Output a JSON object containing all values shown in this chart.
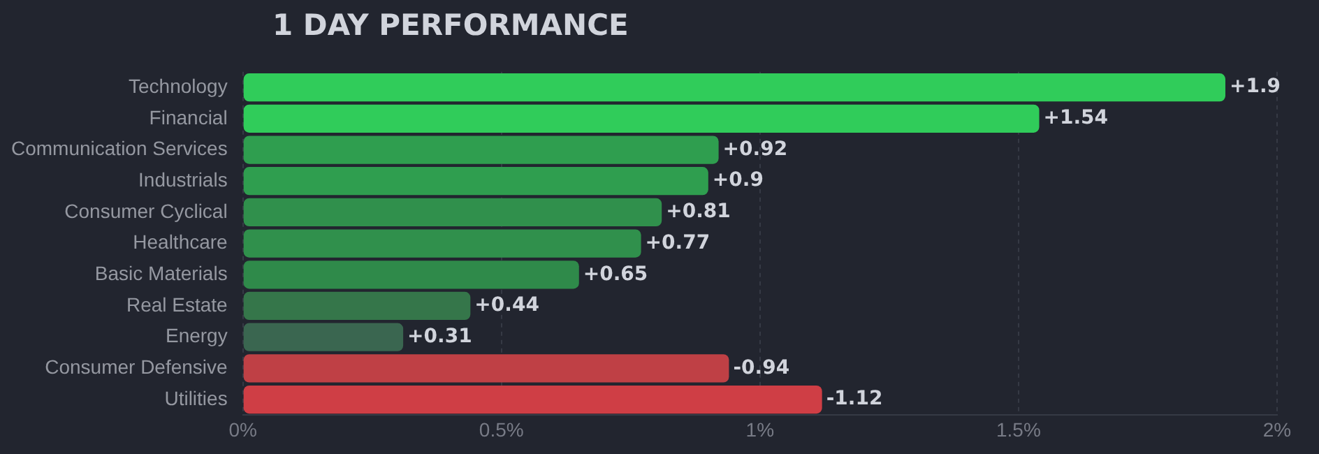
{
  "chart_data": {
    "type": "bar",
    "title": "1 DAY PERFORMANCE",
    "orientation": "horizontal",
    "categories": [
      "Technology",
      "Financial",
      "Communication Services",
      "Industrials",
      "Consumer Cyclical",
      "Healthcare",
      "Basic Materials",
      "Real Estate",
      "Energy",
      "Consumer Defensive",
      "Utilities"
    ],
    "values": [
      1.9,
      1.54,
      0.92,
      0.9,
      0.81,
      0.77,
      0.65,
      0.44,
      0.31,
      -0.94,
      -1.12
    ],
    "base": [
      0,
      0,
      0,
      0,
      0,
      0,
      0,
      0,
      0,
      0.94,
      1.12
    ],
    "value_labels": [
      "+1.9",
      "+1.54",
      "+0.92",
      "+0.9",
      "+0.81",
      "+0.77",
      "+0.65",
      "+0.44",
      "+0.31",
      "-0.94",
      "-1.12"
    ],
    "colors": [
      "#30cc5a",
      "#30cc5a",
      "#2f9e4f",
      "#2f9e4f",
      "#30904c",
      "#30904c",
      "#2f8a4a",
      "#35764a",
      "#3a6650",
      "#bf4045",
      "#cf3e45"
    ],
    "xlim": [
      0,
      2
    ],
    "xticks": [
      {
        "value": 0,
        "label": "0%"
      },
      {
        "value": 0.5,
        "label": "0.5%"
      },
      {
        "value": 1,
        "label": "1%"
      },
      {
        "value": 1.5,
        "label": "1.5%"
      },
      {
        "value": 2,
        "label": "2%"
      }
    ],
    "grid": "x",
    "legend": false
  }
}
